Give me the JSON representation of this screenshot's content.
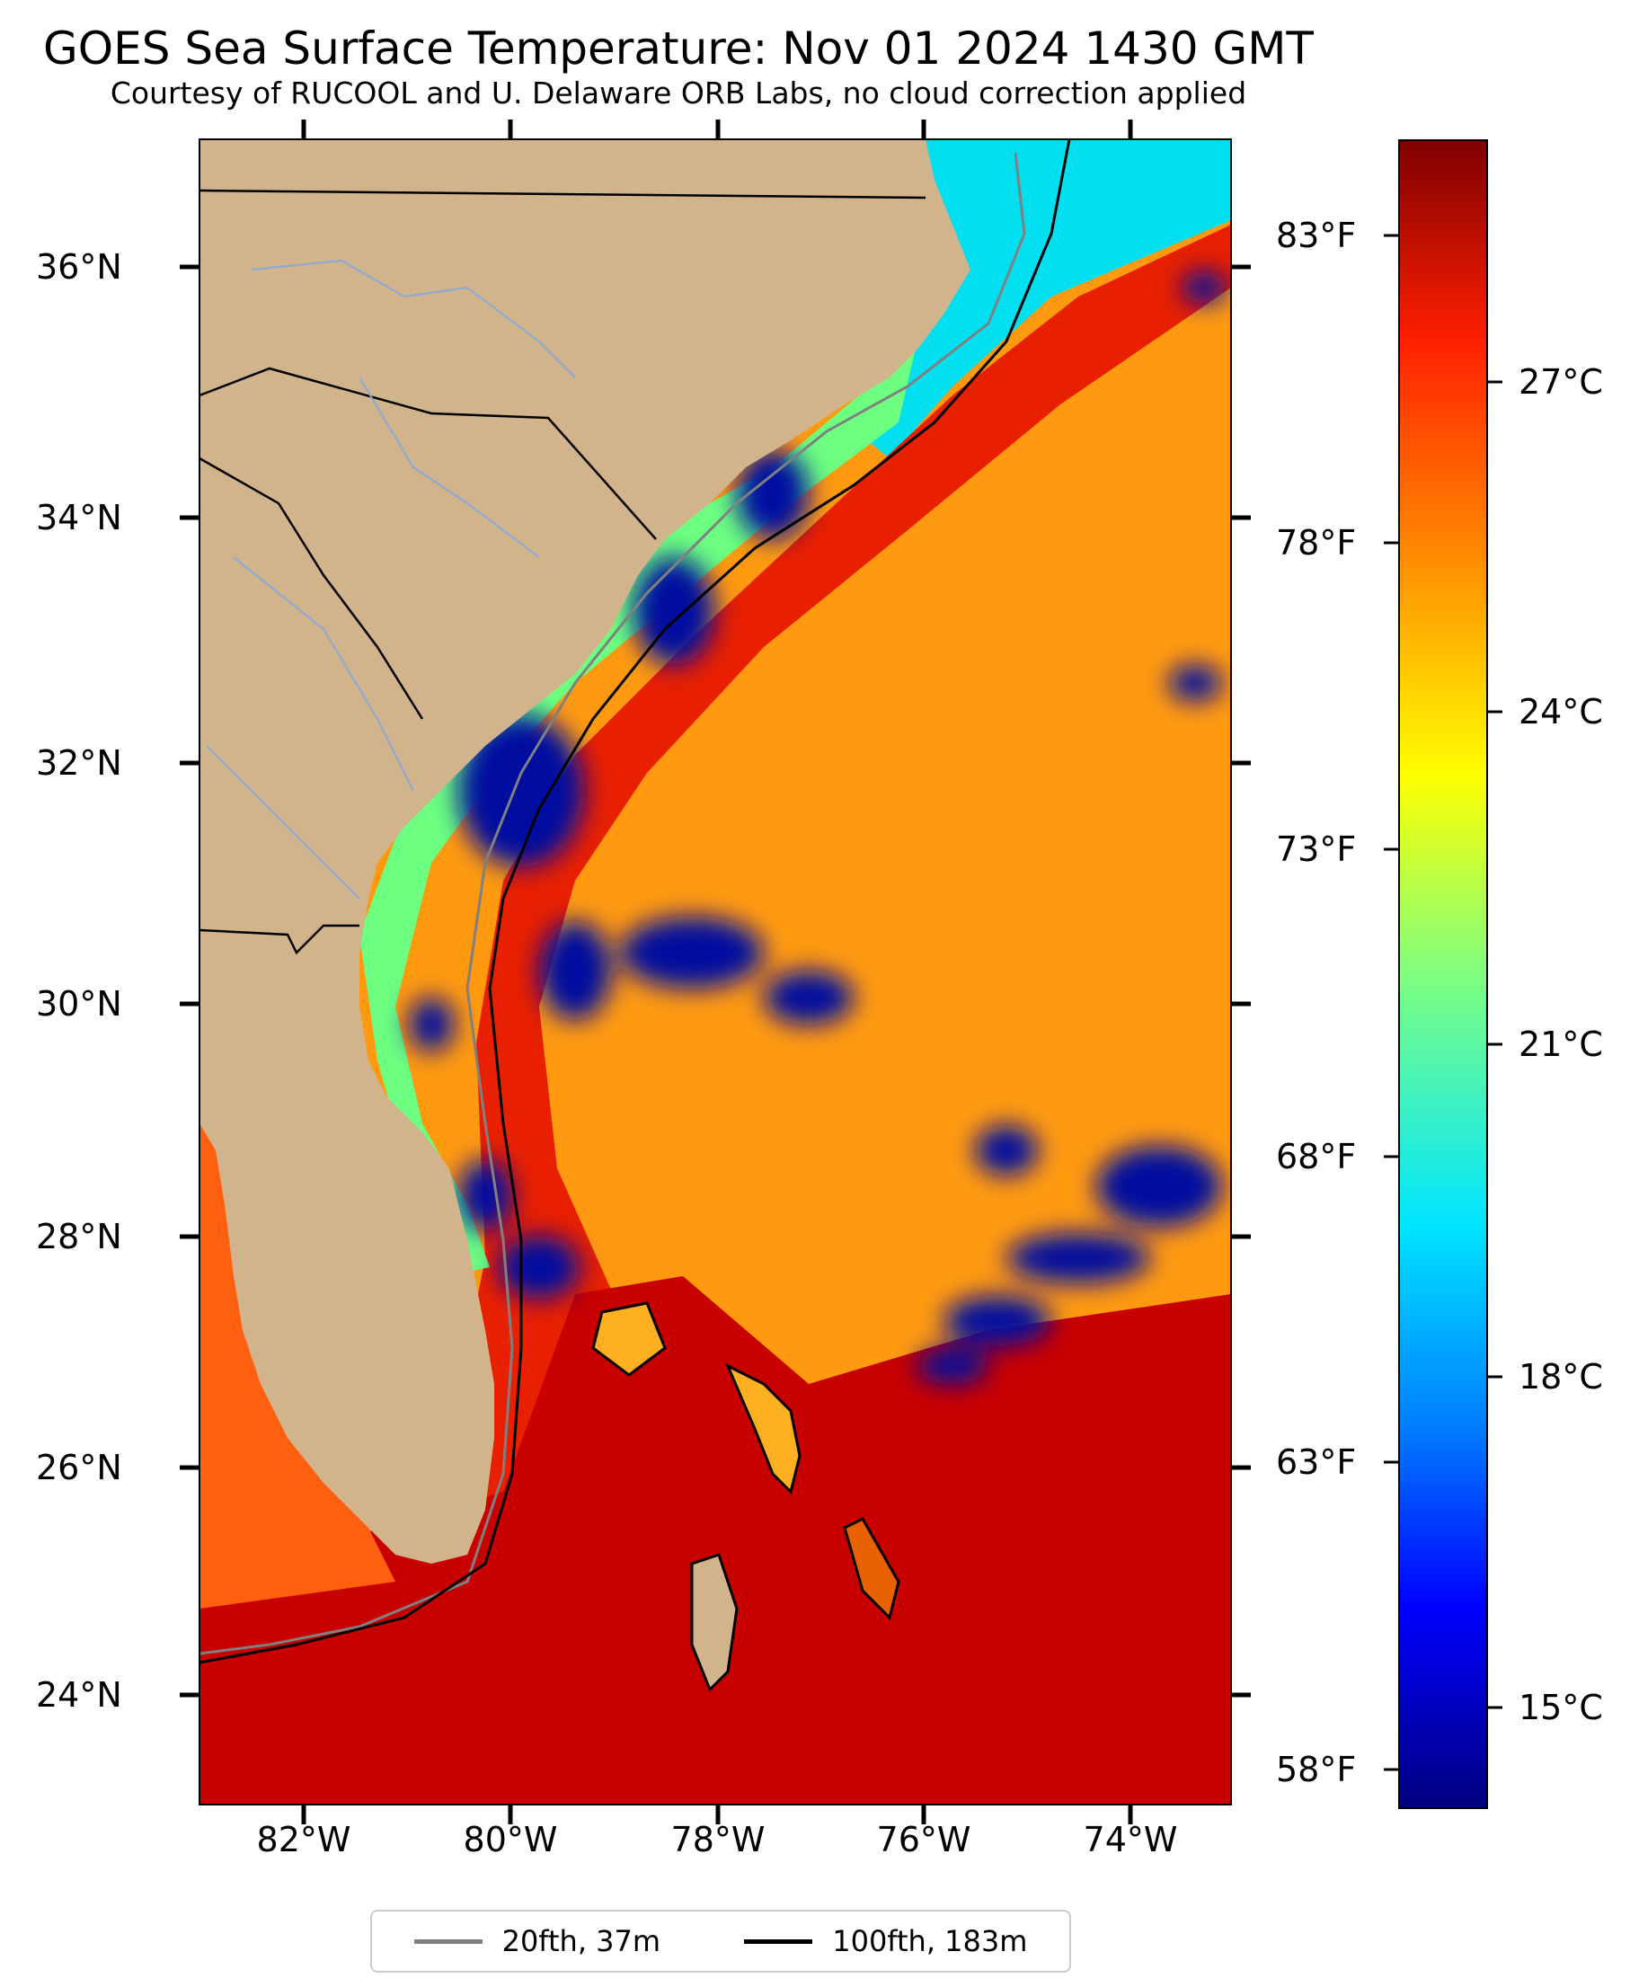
{
  "title": "GOES Sea Surface Temperature: Nov 01 2024 1430 GMT",
  "subtitle": "Courtesy of RUCOOL and U. Delaware ORB Labs, no cloud correction applied",
  "lat_labels": [
    "36°N",
    "34°N",
    "32°N",
    "30°N",
    "28°N",
    "26°N",
    "24°N"
  ],
  "lon_labels": [
    "82°W",
    "80°W",
    "78°W",
    "76°W",
    "74°W"
  ],
  "fahrenheit_labels": [
    "83°F",
    "78°F",
    "73°F",
    "68°F",
    "63°F",
    "58°F"
  ],
  "celsius_labels": [
    "27°C",
    "24°C",
    "21°C",
    "18°C",
    "15°C"
  ],
  "legend": {
    "contour_20": "20fth, 37m",
    "contour_100": "100fth, 183m"
  },
  "colors": {
    "land": "#d2b48c",
    "contour_20": "#808080",
    "contour_100": "#000000",
    "coastal_cold": "#00e0f0",
    "shelf_green": "#6cff80",
    "cloud_blue": "#0010a0",
    "gulf_stream": "#e82000",
    "offshore": "#ff9a10",
    "deep_red": "#c00000"
  }
}
